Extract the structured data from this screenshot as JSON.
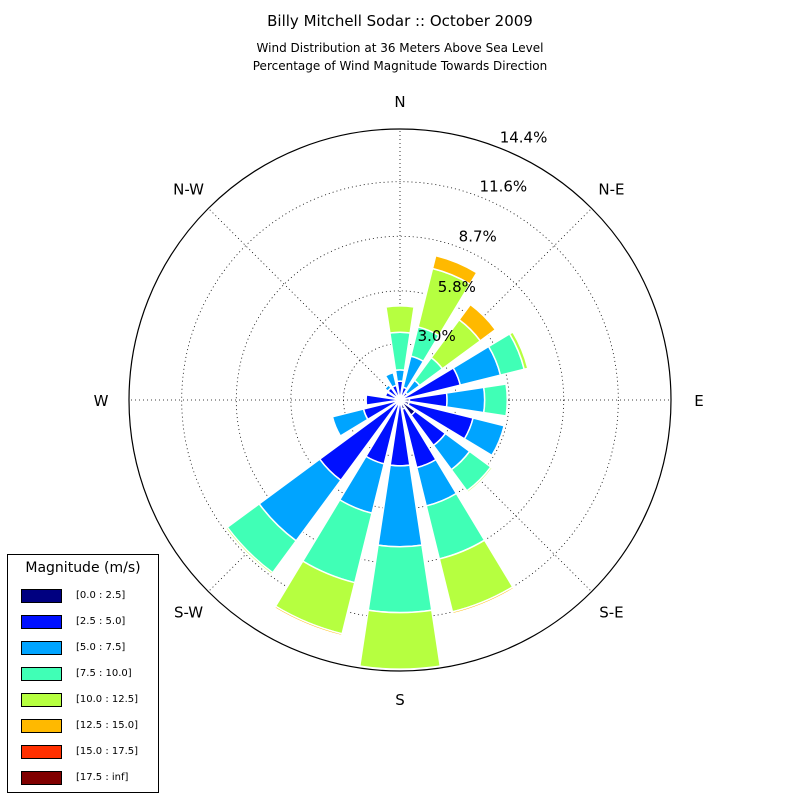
{
  "header": {
    "title": "Billy Mitchell Sodar :: October 2009",
    "subtitle_line1": "Wind Distribution at 36 Meters Above Sea Level",
    "subtitle_line2": "Percentage of Wind Magnitude Towards Direction"
  },
  "chart_data": {
    "type": "windrose",
    "directions": [
      "N",
      "N-E",
      "E",
      "S-E",
      "S",
      "S-W",
      "W",
      "N-W"
    ],
    "radial_ticks": [
      "3.0%",
      "5.8%",
      "8.7%",
      "11.6%",
      "14.4%"
    ],
    "radial_tick_values": [
      3.0,
      5.8,
      8.7,
      11.6,
      14.4
    ],
    "rmax": 14.4,
    "grid": true,
    "legend": {
      "title": "Magnitude (m/s)",
      "placement": "lower-left",
      "bins": [
        {
          "label": "[0.0 : 2.5]",
          "color": "#000080"
        },
        {
          "label": "[2.5 : 5.0]",
          "color": "#0010ff"
        },
        {
          "label": "[5.0 : 7.5]",
          "color": "#00a4ff"
        },
        {
          "label": "[7.5 : 10.0]",
          "color": "#40ffb6"
        },
        {
          "label": "[10.0 : 12.5]",
          "color": "#b6ff40"
        },
        {
          "label": "[12.5 : 15.0]",
          "color": "#ffb900"
        },
        {
          "label": "[15.0 : 17.5]",
          "color": "#ff3000"
        },
        {
          "label": "[17.5 : inf]",
          "color": "#800000"
        }
      ]
    },
    "sectors": [
      {
        "direction_deg": 0,
        "cumulative": [
          0.2,
          1.0,
          1.6,
          3.6,
          5.0
        ]
      },
      {
        "direction_deg": 22.5,
        "cumulative": [
          0.2,
          0.7,
          2.4,
          4.0,
          7.2,
          7.9
        ]
      },
      {
        "direction_deg": 45,
        "cumulative": [
          0.2,
          0.5,
          1.3,
          2.8,
          5.3,
          6.3
        ]
      },
      {
        "direction_deg": 67.5,
        "cumulative": [
          0.2,
          3.3,
          5.5,
          6.8,
          7.0
        ]
      },
      {
        "direction_deg": 90,
        "cumulative": [
          0.5,
          2.5,
          4.5,
          5.7
        ]
      },
      {
        "direction_deg": 112.5,
        "cumulative": [
          0.5,
          4.0,
          5.7
        ]
      },
      {
        "direction_deg": 135,
        "cumulative": [
          1.0,
          3.0,
          4.6,
          6.0,
          6.1
        ]
      },
      {
        "direction_deg": 157.5,
        "cumulative": [
          0.5,
          3.7,
          5.8,
          8.7,
          11.6,
          11.7
        ]
      },
      {
        "direction_deg": 180,
        "cumulative": [
          0.2,
          3.5,
          7.8,
          11.3,
          14.3
        ]
      },
      {
        "direction_deg": 202.5,
        "cumulative": [
          0.2,
          3.5,
          6.2,
          10.0,
          12.8,
          12.9
        ]
      },
      {
        "direction_deg": 225,
        "cumulative": [
          0.2,
          5.3,
          9.3,
          11.4,
          11.5
        ]
      },
      {
        "direction_deg": 247.5,
        "cumulative": [
          0.2,
          2.0,
          3.7
        ]
      },
      {
        "direction_deg": 270,
        "cumulative": [
          0.2,
          1.8
        ]
      },
      {
        "direction_deg": 292.5,
        "cumulative": [
          0.2,
          0.8
        ]
      },
      {
        "direction_deg": 315,
        "cumulative": [
          0.2,
          0.8,
          1.0
        ]
      },
      {
        "direction_deg": 337.5,
        "cumulative": [
          0.2,
          0.8,
          1.5
        ]
      }
    ]
  }
}
